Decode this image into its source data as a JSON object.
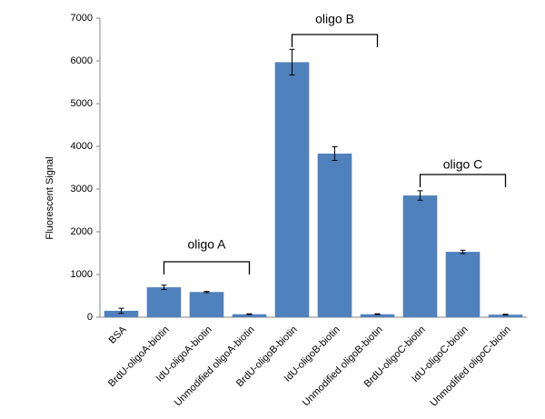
{
  "chart_data": {
    "type": "bar",
    "y_label": "Fluorescent  Signal",
    "categories": [
      "BSA",
      "BrdU-oligoA-biotin",
      "IdU-oligoA-biotin",
      "Unmodified oligoA-biotin",
      "BrdU-oligoB-biotin",
      "IdU-oligoB-biotin",
      "Unmodified oligoB-biotin",
      "BrdU-oligoC-biotin",
      "IdU-oligoC-biotin",
      "Unmodified oligoC-biotin"
    ],
    "values": [
      150,
      700,
      590,
      70,
      5970,
      3830,
      70,
      2850,
      1530,
      60
    ],
    "errors": [
      60,
      50,
      15,
      10,
      300,
      160,
      10,
      110,
      40,
      10
    ],
    "color": "#4f81bd",
    "ylim": [
      0,
      7000
    ],
    "yticks": [
      0,
      1000,
      2000,
      3000,
      4000,
      5000,
      6000,
      7000
    ],
    "grid": false,
    "annotations": [
      "oligo A",
      "oligo B",
      "oligo C"
    ]
  }
}
